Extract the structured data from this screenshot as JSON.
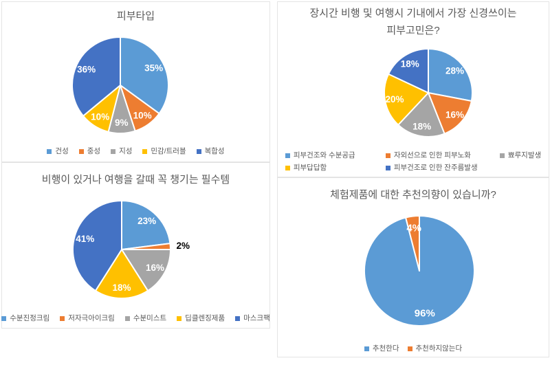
{
  "page": {
    "background": "#ffffff",
    "panel_border_color": "#e4e4e4",
    "title_color": "#595959",
    "legend_text_color": "#595959"
  },
  "chart_data": [
    {
      "type": "pie",
      "title": "피부타입",
      "labels": [
        "건성",
        "중성",
        "지성",
        "민감/트러블",
        "복합성"
      ],
      "values": [
        35,
        10,
        9,
        10,
        36
      ],
      "value_labels": [
        "35%",
        "10%",
        "9%",
        "10%",
        "36%"
      ],
      "colors": [
        "#5B9BD5",
        "#ED7D31",
        "#A5A5A5",
        "#FFC000",
        "#4472C4"
      ],
      "data_label_color": "#FFFFFF",
      "legend_position": "bottom",
      "start_angle_deg": 0,
      "direction": "clockwise"
    },
    {
      "type": "pie",
      "title": "장시간 비행 및 여행시 기내에서 가장 신경쓰이는\n피부고민은?",
      "labels": [
        "피부건조와 수분공급",
        "자외선으로 인한 피부노화",
        "뾰루지발생",
        "피부답답함",
        "피부건조로 인한 잔주름발생"
      ],
      "values": [
        28,
        16,
        18,
        20,
        18
      ],
      "value_labels": [
        "28%",
        "16%",
        "18%",
        "20%",
        "18%"
      ],
      "colors": [
        "#5B9BD5",
        "#ED7D31",
        "#A5A5A5",
        "#FFC000",
        "#4472C4"
      ],
      "data_label_color": "#FFFFFF",
      "legend_position": "bottom",
      "start_angle_deg": 0,
      "direction": "clockwise"
    },
    {
      "type": "pie",
      "title": "비행이 있거나 여행을 갈때 꼭 챙기는 필수템",
      "labels": [
        "수분진정크림",
        "저자극아이크림",
        "수분미스트",
        "딥클렌징제품",
        "마스크팩"
      ],
      "values": [
        23,
        2,
        16,
        18,
        41
      ],
      "value_labels": [
        "23%",
        "2%",
        "16%",
        "18%",
        "41%"
      ],
      "colors": [
        "#5B9BD5",
        "#ED7D31",
        "#A5A5A5",
        "#FFC000",
        "#4472C4"
      ],
      "data_label_color": "#FFFFFF",
      "label_overrides": {
        "1": {
          "outside": true,
          "color": "#000000"
        }
      },
      "legend_position": "bottom",
      "start_angle_deg": 0,
      "direction": "clockwise"
    },
    {
      "type": "pie",
      "title": "체험제품에 대한 추천의향이 있습니까?",
      "labels": [
        "추천한다",
        "추천하지않는다"
      ],
      "values": [
        96,
        4
      ],
      "value_labels": [
        "96%",
        "4%"
      ],
      "colors": [
        "#5B9BD5",
        "#ED7D31"
      ],
      "data_label_color": "#FFFFFF",
      "legend_position": "bottom",
      "start_angle_deg": 0,
      "direction": "clockwise"
    }
  ]
}
